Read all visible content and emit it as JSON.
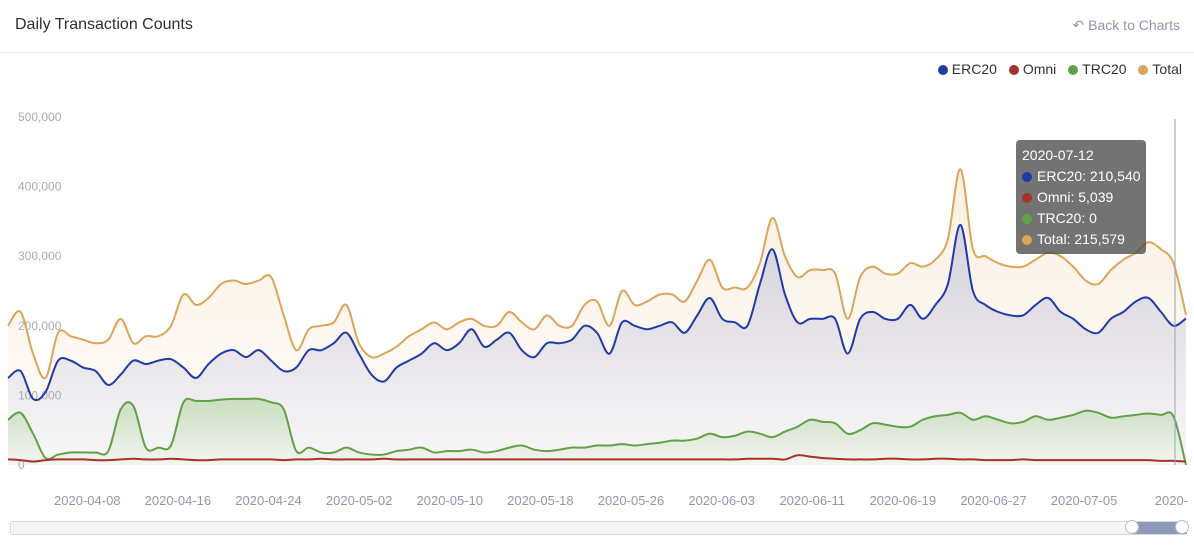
{
  "header": {
    "title": "Daily Transaction Counts",
    "back_label": "Back to Charts",
    "back_icon": "undo-arrow-icon"
  },
  "legend": [
    {
      "name": "ERC20",
      "color": "#1f3ba8"
    },
    {
      "name": "Omni",
      "color": "#a8312b"
    },
    {
      "name": "TRC20",
      "color": "#63a147"
    },
    {
      "name": "Total",
      "color": "#dba55a"
    }
  ],
  "tooltip": {
    "date": "2020-07-12",
    "rows": [
      {
        "label": "ERC20: 210,540",
        "color": "#1f3ba8"
      },
      {
        "label": "Omni: 5,039",
        "color": "#a8312b"
      },
      {
        "label": "TRC20: 0",
        "color": "#63a147"
      },
      {
        "label": "Total: 215,579",
        "color": "#dba55a"
      }
    ]
  },
  "chart_data": {
    "type": "area",
    "title": "Daily Transaction Counts",
    "ylim": [
      0,
      500000
    ],
    "yticks": [
      "0",
      "100,000",
      "200,000",
      "300,000",
      "400,000",
      "500,000"
    ],
    "xticks": [
      "2020-04-08",
      "2020-04-16",
      "2020-04-24",
      "2020-05-02",
      "2020-05-10",
      "2020-05-18",
      "2020-05-26",
      "2020-06-03",
      "2020-06-11",
      "2020-06-19",
      "2020-06-27",
      "2020-07-05",
      "2020-"
    ],
    "x_start": "2020-04-01",
    "x_end": "2020-07-14",
    "legend_position": "top-right",
    "series": [
      {
        "name": "ERC20",
        "color": "#1f3ba8",
        "values": [
          125000,
          135000,
          95000,
          105000,
          150000,
          150000,
          140000,
          135000,
          115000,
          130000,
          150000,
          145000,
          150000,
          152000,
          140000,
          125000,
          145000,
          160000,
          165000,
          155000,
          165000,
          150000,
          135000,
          140000,
          165000,
          165000,
          175000,
          190000,
          160000,
          130000,
          120000,
          140000,
          150000,
          160000,
          175000,
          165000,
          175000,
          195000,
          170000,
          180000,
          190000,
          165000,
          155000,
          175000,
          175000,
          180000,
          200000,
          190000,
          160000,
          205000,
          200000,
          195000,
          200000,
          205000,
          190000,
          215000,
          240000,
          210000,
          205000,
          200000,
          260000,
          310000,
          245000,
          205000,
          210000,
          210000,
          210000,
          160000,
          210000,
          220000,
          210000,
          210000,
          230000,
          210000,
          230000,
          260000,
          345000,
          250000,
          230000,
          220000,
          215000,
          215000,
          230000,
          240000,
          220000,
          210000,
          195000,
          190000,
          210000,
          220000,
          235000,
          240000,
          220000,
          200000,
          210540
        ]
      },
      {
        "name": "Omni",
        "color": "#a8312b",
        "values": [
          8000,
          7000,
          5000,
          7000,
          8000,
          8000,
          8000,
          7000,
          7000,
          8000,
          9000,
          8000,
          8000,
          9000,
          8000,
          7000,
          7000,
          8000,
          8000,
          8000,
          8000,
          8000,
          7000,
          8000,
          8000,
          9000,
          8000,
          8000,
          8000,
          8000,
          9000,
          8000,
          8000,
          8000,
          8000,
          8000,
          8000,
          8000,
          8000,
          8000,
          8000,
          8000,
          8000,
          8000,
          8000,
          8000,
          8000,
          8000,
          8000,
          8000,
          8000,
          8000,
          8000,
          8000,
          8000,
          8000,
          8000,
          8000,
          8000,
          9000,
          9000,
          9000,
          8000,
          14000,
          12000,
          10000,
          9000,
          8000,
          8000,
          8000,
          9000,
          9000,
          8000,
          8000,
          9000,
          9000,
          8000,
          8000,
          7000,
          7000,
          7000,
          8000,
          7000,
          7000,
          7000,
          7000,
          7000,
          7000,
          7000,
          7000,
          7000,
          7000,
          6000,
          6000,
          5039
        ]
      },
      {
        "name": "TRC20",
        "color": "#63a147",
        "values": [
          65000,
          75000,
          45000,
          10000,
          15000,
          18000,
          18000,
          18000,
          20000,
          80000,
          85000,
          25000,
          25000,
          28000,
          90000,
          92000,
          92000,
          94000,
          95000,
          95000,
          95000,
          90000,
          80000,
          20000,
          25000,
          18000,
          18000,
          25000,
          18000,
          15000,
          15000,
          20000,
          22000,
          25000,
          18000,
          20000,
          20000,
          22000,
          18000,
          20000,
          25000,
          28000,
          22000,
          20000,
          22000,
          25000,
          25000,
          28000,
          28000,
          30000,
          28000,
          30000,
          32000,
          35000,
          35000,
          38000,
          45000,
          40000,
          42000,
          48000,
          45000,
          40000,
          48000,
          55000,
          65000,
          62000,
          60000,
          45000,
          50000,
          60000,
          58000,
          55000,
          55000,
          65000,
          70000,
          72000,
          75000,
          65000,
          70000,
          65000,
          60000,
          62000,
          70000,
          65000,
          68000,
          72000,
          78000,
          75000,
          68000,
          70000,
          72000,
          74000,
          72000,
          70000,
          0
        ]
      },
      {
        "name": "Total",
        "color": "#dba55a",
        "values": [
          200000,
          220000,
          160000,
          125000,
          190000,
          185000,
          180000,
          175000,
          180000,
          210000,
          175000,
          185000,
          185000,
          200000,
          245000,
          230000,
          240000,
          260000,
          265000,
          260000,
          265000,
          270000,
          215000,
          165000,
          195000,
          200000,
          205000,
          230000,
          175000,
          155000,
          160000,
          170000,
          185000,
          195000,
          205000,
          195000,
          205000,
          210000,
          200000,
          200000,
          220000,
          205000,
          195000,
          215000,
          200000,
          200000,
          230000,
          235000,
          200000,
          250000,
          230000,
          235000,
          245000,
          245000,
          235000,
          265000,
          295000,
          255000,
          255000,
          255000,
          290000,
          355000,
          300000,
          270000,
          280000,
          280000,
          275000,
          210000,
          270000,
          285000,
          275000,
          275000,
          290000,
          285000,
          295000,
          325000,
          425000,
          310000,
          300000,
          290000,
          285000,
          285000,
          295000,
          305000,
          300000,
          285000,
          265000,
          260000,
          280000,
          295000,
          305000,
          320000,
          310000,
          290000,
          215579
        ]
      }
    ]
  }
}
